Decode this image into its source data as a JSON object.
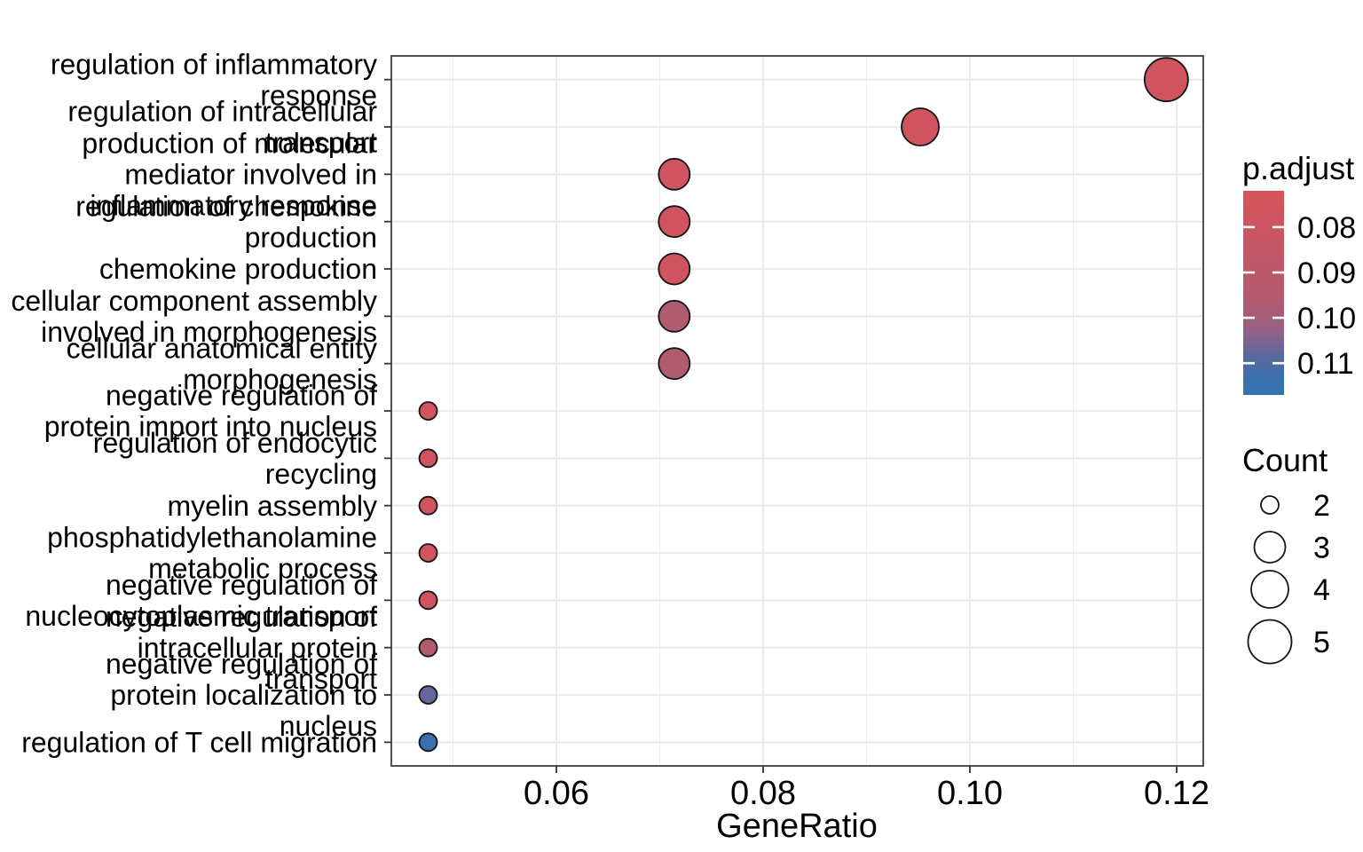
{
  "chart_data": {
    "type": "scatter",
    "title": "",
    "xlabel": "GeneRatio",
    "ylabel": "",
    "xlim": [
      0.044,
      0.1226
    ],
    "grid": true,
    "x_ticks": [
      {
        "label": "0.06",
        "value": 0.06
      },
      {
        "label": "0.08",
        "value": 0.08
      },
      {
        "label": "0.10",
        "value": 0.1
      },
      {
        "label": "0.12",
        "value": 0.12
      }
    ],
    "x_minor_ticks": [
      0.05,
      0.07,
      0.09,
      0.11
    ],
    "points": [
      {
        "term": "regulation of inflammatory response",
        "label_lines": [
          "regulation of inflammatory",
          "response"
        ],
        "gene_ratio": 0.119,
        "count": 5,
        "p_adjust": 0.077
      },
      {
        "term": "regulation of intracellular transport",
        "label_lines": [
          "regulation of intracellular",
          "transport"
        ],
        "gene_ratio": 0.0952,
        "count": 4,
        "p_adjust": 0.077
      },
      {
        "term": "production of molecular mediator involved in inflammatory response",
        "label_lines": [
          "production of molecular",
          "mediator involved in",
          "inflammatory response"
        ],
        "gene_ratio": 0.0714,
        "count": 3,
        "p_adjust": 0.077
      },
      {
        "term": "regulation of chemokine production",
        "label_lines": [
          "regulation of chemokine",
          "production"
        ],
        "gene_ratio": 0.0714,
        "count": 3,
        "p_adjust": 0.077
      },
      {
        "term": "chemokine production",
        "label_lines": [
          "chemokine production"
        ],
        "gene_ratio": 0.0714,
        "count": 3,
        "p_adjust": 0.077
      },
      {
        "term": "cellular component assembly involved in morphogenesis",
        "label_lines": [
          "cellular component assembly",
          "involved in morphogenesis"
        ],
        "gene_ratio": 0.0714,
        "count": 3,
        "p_adjust": 0.097
      },
      {
        "term": "cellular anatomical entity morphogenesis",
        "label_lines": [
          "cellular anatomical entity",
          "morphogenesis"
        ],
        "gene_ratio": 0.0714,
        "count": 3,
        "p_adjust": 0.097
      },
      {
        "term": "negative regulation of protein import into nucleus",
        "label_lines": [
          "negative regulation of",
          "protein import into nucleus"
        ],
        "gene_ratio": 0.0476,
        "count": 2,
        "p_adjust": 0.077
      },
      {
        "term": "regulation of endocytic recycling",
        "label_lines": [
          "regulation of endocytic",
          "recycling"
        ],
        "gene_ratio": 0.0476,
        "count": 2,
        "p_adjust": 0.077
      },
      {
        "term": "myelin assembly",
        "label_lines": [
          "myelin assembly"
        ],
        "gene_ratio": 0.0476,
        "count": 2,
        "p_adjust": 0.077
      },
      {
        "term": "phosphatidylethanolamine metabolic process",
        "label_lines": [
          "phosphatidylethanolamine",
          "metabolic process"
        ],
        "gene_ratio": 0.0476,
        "count": 2,
        "p_adjust": 0.077
      },
      {
        "term": "negative regulation of nucleocytoplasmic transport",
        "label_lines": [
          "negative regulation of",
          "nucleocytoplasmic transport"
        ],
        "gene_ratio": 0.0476,
        "count": 2,
        "p_adjust": 0.077
      },
      {
        "term": "negative regulation of intracellular protein transport",
        "label_lines": [
          "negative regulation of",
          "intracellular protein",
          "transport"
        ],
        "gene_ratio": 0.0476,
        "count": 2,
        "p_adjust": 0.097
      },
      {
        "term": "negative regulation of protein localization to nucleus",
        "label_lines": [
          "negative regulation of",
          "protein localization to",
          "nucleus"
        ],
        "gene_ratio": 0.0476,
        "count": 2,
        "p_adjust": 0.1075
      },
      {
        "term": "regulation of T cell migration",
        "label_lines": [
          "regulation of T cell migration"
        ],
        "gene_ratio": 0.0476,
        "count": 2,
        "p_adjust": 0.1135
      }
    ]
  },
  "legend": {
    "p_adjust": {
      "title": "p.adjust",
      "domain": [
        0.072,
        0.117
      ],
      "ticks": [
        {
          "label": "0.08",
          "value": 0.08
        },
        {
          "label": "0.09",
          "value": 0.09
        },
        {
          "label": "0.10",
          "value": 0.1
        },
        {
          "label": "0.11",
          "value": 0.11
        }
      ],
      "gradient_stops": [
        [
          0.0,
          "#D8535A"
        ],
        [
          0.3,
          "#C25767"
        ],
        [
          0.556,
          "#B15B6E"
        ],
        [
          0.7,
          "#8F6189"
        ],
        [
          0.8,
          "#5F679E"
        ],
        [
          0.92,
          "#3970AE"
        ],
        [
          1.0,
          "#3273B4"
        ]
      ]
    },
    "count": {
      "title": "Count",
      "items": [
        {
          "value": "2",
          "radius": 10
        },
        {
          "value": "3",
          "radius": 17.5
        },
        {
          "value": "4",
          "radius": 21
        },
        {
          "value": "5",
          "radius": 24.5
        }
      ]
    }
  },
  "colors": {
    "background": "#FFFFFF",
    "panel_border": "#3C3C3C",
    "grid_major": "#E6E6E6",
    "grid_minor": "#EDEDED",
    "tick": "#333333",
    "point_stroke": "#141414",
    "text": "#000000"
  }
}
